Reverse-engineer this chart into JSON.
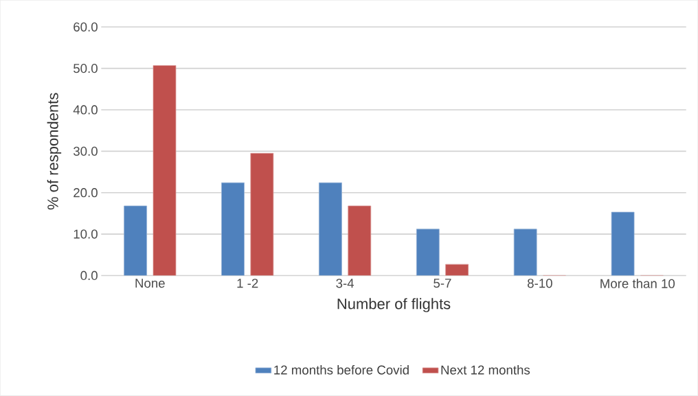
{
  "chart_data": {
    "type": "bar",
    "xlabel": "Number of flights",
    "ylabel": "% of respondents",
    "categories": [
      "None",
      "1 -2",
      "3-4",
      "5-7",
      "8-10",
      "More than 10"
    ],
    "series": [
      {
        "name": "12 months before Covid",
        "color": "#4f81bd",
        "values": [
          16.8,
          22.4,
          22.4,
          11.2,
          11.2,
          15.3
        ]
      },
      {
        "name": "Next 12 months",
        "color": "#c0504d",
        "values": [
          50.7,
          29.5,
          16.8,
          2.7,
          0,
          0
        ]
      }
    ],
    "ylim": [
      0,
      60
    ],
    "yticks": [
      {
        "value": 0,
        "label": "0.0"
      },
      {
        "value": 10,
        "label": "10.0"
      },
      {
        "value": 20,
        "label": "20.0"
      },
      {
        "value": 30,
        "label": "30.0"
      },
      {
        "value": 40,
        "label": "40.0"
      },
      {
        "value": 50,
        "label": "50.0"
      },
      {
        "value": 60,
        "label": "60.0"
      }
    ],
    "grid": "y",
    "legend": "bottom"
  }
}
